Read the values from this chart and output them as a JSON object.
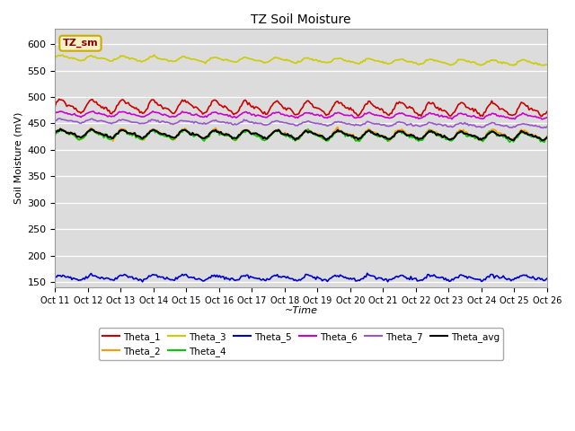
{
  "title": "TZ Soil Moisture",
  "ylabel": "Soil Moisture (mV)",
  "xlabel": "~Time",
  "ylim": [
    140,
    630
  ],
  "yticks": [
    150,
    200,
    250,
    300,
    350,
    400,
    450,
    500,
    550,
    600
  ],
  "xtick_labels": [
    "Oct 11",
    "Oct 12",
    "Oct 13",
    "Oct 14",
    "Oct 15",
    "Oct 16",
    "Oct 17",
    "Oct 18",
    "Oct 19",
    "Oct 20",
    "Oct 21",
    "Oct 22",
    "Oct 23",
    "Oct 24",
    "Oct 25",
    "Oct 26"
  ],
  "n_points": 384,
  "bg_color": "#dcdcdc",
  "legend_box_color": "#f5f0c8",
  "legend_box_edge": "#ccaa00",
  "series": {
    "Theta_1": {
      "color": "#cc0000",
      "base": 483,
      "amp": 10,
      "trend": -0.018,
      "noise": 1.5,
      "freq": 24
    },
    "Theta_2": {
      "color": "#ff9900",
      "base": 430,
      "amp": 8,
      "trend": -0.005,
      "noise": 1.5,
      "freq": 24
    },
    "Theta_3": {
      "color": "#cccc00",
      "base": 574,
      "amp": 4,
      "trend": -0.025,
      "noise": 0.8,
      "freq": 24
    },
    "Theta_4": {
      "color": "#00cc00",
      "base": 429,
      "amp": 7,
      "trend": -0.01,
      "noise": 1.5,
      "freq": 24
    },
    "Theta_5": {
      "color": "#0000cc",
      "base": 158,
      "amp": 4,
      "trend": 0.0,
      "noise": 1.5,
      "freq": 24
    },
    "Theta_6": {
      "color": "#cc00cc",
      "base": 468,
      "amp": 4,
      "trend": -0.012,
      "noise": 0.8,
      "freq": 24
    },
    "Theta_7": {
      "color": "#9955cc",
      "base": 455,
      "amp": 3,
      "trend": -0.025,
      "noise": 0.8,
      "freq": 24
    },
    "Theta_avg": {
      "color": "#000000",
      "base": 431,
      "amp": 6,
      "trend": -0.012,
      "noise": 1.0,
      "freq": 24
    }
  },
  "legend_order": [
    "Theta_1",
    "Theta_2",
    "Theta_3",
    "Theta_4",
    "Theta_5",
    "Theta_6",
    "Theta_7",
    "Theta_avg"
  ]
}
